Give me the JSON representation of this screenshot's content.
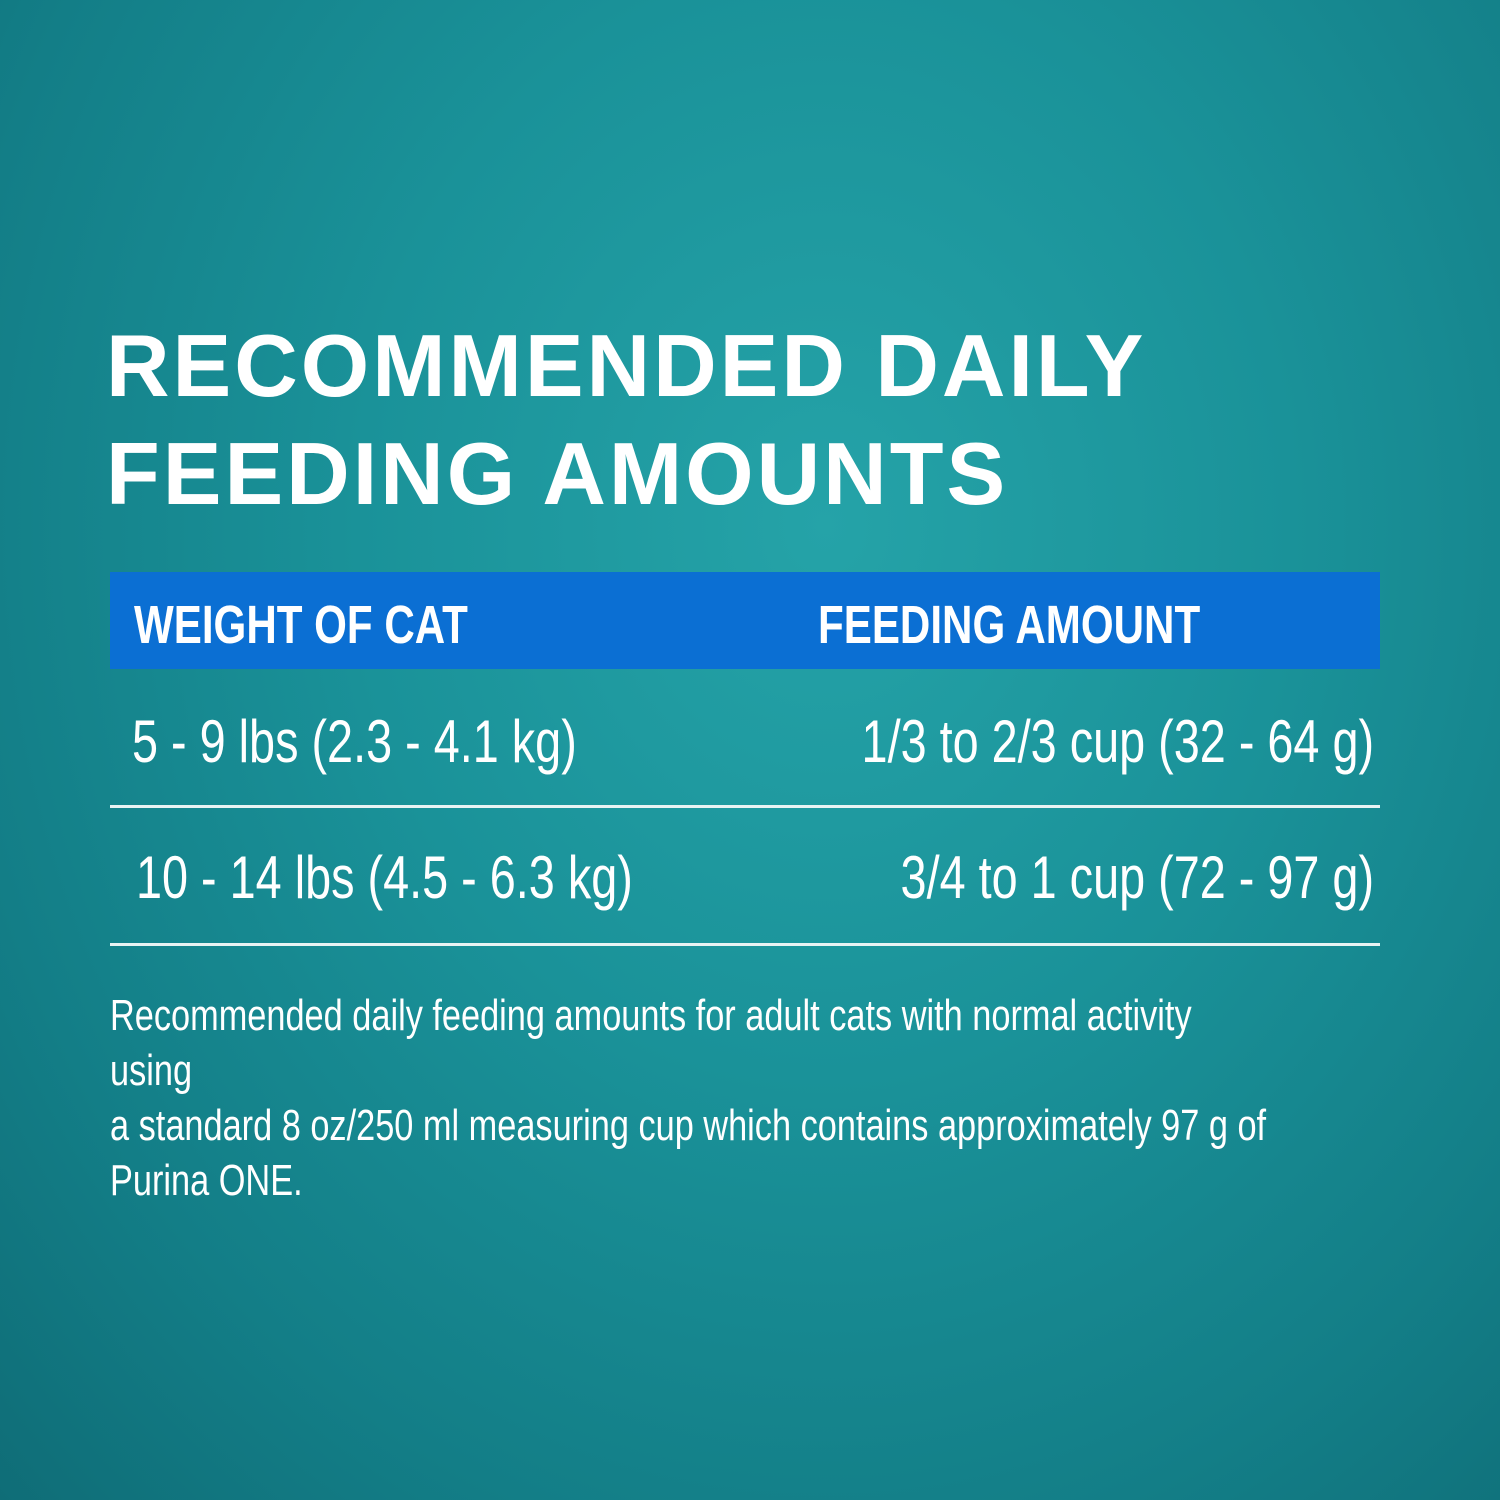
{
  "title": {
    "line1": "RECOMMENDED DAILY",
    "line2": "FEEDING AMOUNTS"
  },
  "table": {
    "headers": [
      "WEIGHT OF CAT",
      "FEEDING AMOUNT"
    ],
    "rows": [
      [
        "5 - 9 lbs (2.3 - 4.1 kg)",
        "1/3 to 2/3 cup (32 - 64 g)"
      ],
      [
        "10 - 14 lbs (4.5 - 6.3 kg)",
        "3/4 to 1 cup (72 - 97 g)"
      ]
    ]
  },
  "footnote": {
    "line1": "Recommended daily feeding amounts for adult cats with normal activity using",
    "line2": "a standard 8 oz/250 ml measuring cup which contains approximately 97 g of",
    "line3": "Purina ONE."
  },
  "colors": {
    "background": "#1a9299",
    "header": "#0b6fd3",
    "text": "#ffffff"
  }
}
